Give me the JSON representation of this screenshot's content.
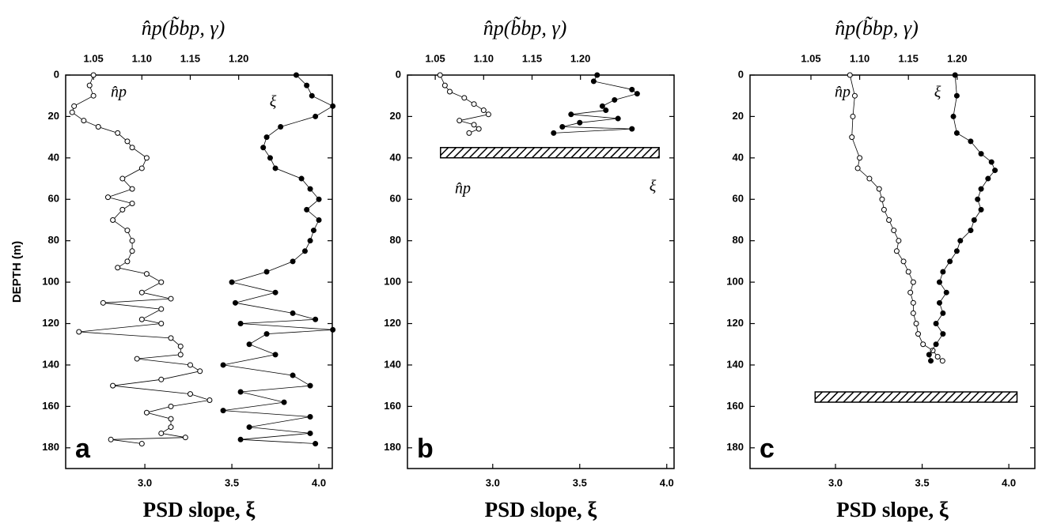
{
  "chart_data": [
    {
      "type": "scatter",
      "title": "n̂p(b̃bp, γ)",
      "xlabel": "PSD slope, ξ",
      "ylabel": "DEPTH (m)",
      "panel_label": "a",
      "xlim": [
        2.545,
        4.077
      ],
      "xticks": [
        {
          "value": 3.0,
          "label": "3.0"
        },
        {
          "value": 3.5,
          "label": "3.5"
        },
        {
          "value": 4.0,
          "label": "4.0"
        }
      ],
      "x2lim": [
        1.0213,
        1.2967
      ],
      "x2ticks": [
        1.05,
        {
          "value": 1.1,
          "label": "1.10"
        },
        1.15,
        {
          "value": 1.2,
          "label": "1.20"
        }
      ],
      "ylim": [
        0,
        190
      ],
      "yticks": [
        0,
        20,
        40,
        60,
        80,
        100,
        120,
        140,
        160,
        180
      ],
      "series": [
        {
          "name": "n̂p",
          "axis": "x2",
          "marker": "open",
          "x": [
            1.05,
            1.046,
            1.05,
            1.03,
            1.028,
            1.04,
            1.055,
            1.075,
            1.085,
            1.09,
            1.105,
            1.1,
            1.08,
            1.09,
            1.065,
            1.09,
            1.08,
            1.07,
            1.085,
            1.09,
            1.09,
            1.085,
            1.075,
            1.105,
            1.12,
            1.1,
            1.13,
            1.06,
            1.12,
            1.1,
            1.12,
            1.035,
            1.13,
            1.14,
            1.14,
            1.095,
            1.15,
            1.16,
            1.12,
            1.07,
            1.15,
            1.17,
            1.13,
            1.105,
            1.13,
            1.13,
            1.12,
            1.145,
            1.068,
            1.1
          ],
          "y": [
            0,
            5,
            10,
            15,
            18,
            22,
            25,
            28,
            32,
            35,
            40,
            45,
            50,
            55,
            59,
            62,
            65,
            70,
            75,
            80,
            85,
            90,
            93,
            96,
            100,
            105,
            108,
            110,
            113,
            118,
            120,
            124,
            127,
            131,
            135,
            137,
            140,
            143,
            147,
            150,
            154,
            157,
            160,
            163,
            166,
            170,
            173,
            175,
            176,
            178
          ]
        },
        {
          "name": "ξ",
          "axis": "x",
          "marker": "filled",
          "x": [
            3.87,
            3.93,
            3.96,
            4.08,
            3.98,
            3.78,
            3.7,
            3.68,
            3.72,
            3.75,
            3.9,
            3.95,
            4.0,
            3.93,
            4.0,
            3.97,
            3.95,
            3.92,
            3.85,
            3.7,
            3.5,
            3.75,
            3.52,
            3.85,
            3.98,
            3.55,
            4.08,
            3.7,
            3.6,
            3.75,
            3.45,
            3.85,
            3.95,
            3.55,
            3.8,
            3.45,
            3.95,
            3.6,
            3.95,
            3.55,
            3.98
          ],
          "y": [
            0,
            5,
            10,
            15,
            20,
            25,
            30,
            35,
            40,
            45,
            50,
            55,
            60,
            65,
            70,
            75,
            80,
            85,
            90,
            95,
            100,
            105,
            110,
            115,
            118,
            120,
            123,
            125,
            130,
            135,
            140,
            145,
            150,
            153,
            158,
            162,
            165,
            170,
            173,
            176,
            178
          ]
        }
      ]
    },
    {
      "type": "scatter",
      "title": "n̂p(b̃bp, γ)",
      "xlabel": "PSD slope, ξ",
      "panel_label": "b",
      "xlim": [
        2.51,
        4.042
      ],
      "xticks": [
        {
          "value": 3.0,
          "label": "3.0"
        },
        {
          "value": 3.5,
          "label": "3.5"
        },
        {
          "value": 4.0,
          "label": "4.0"
        }
      ],
      "x2lim": [
        1.0213,
        1.2967
      ],
      "x2ticks": [
        1.05,
        {
          "value": 1.1,
          "label": "1.10"
        },
        1.15,
        {
          "value": 1.2,
          "label": "1.20"
        }
      ],
      "ylim": [
        0,
        190
      ],
      "yticks": [
        0,
        20,
        40,
        60,
        80,
        100,
        120,
        140,
        160,
        180
      ],
      "bottom_depth": 35,
      "series": [
        {
          "name": "n̂p",
          "axis": "x2",
          "marker": "open",
          "x": [
            1.055,
            1.06,
            1.065,
            1.08,
            1.09,
            1.1,
            1.105,
            1.075,
            1.09,
            1.095,
            1.085
          ],
          "y": [
            0,
            5,
            8,
            11,
            14,
            17,
            19,
            22,
            24,
            26,
            28
          ]
        },
        {
          "name": "ξ",
          "axis": "x",
          "marker": "filled",
          "x": [
            3.6,
            3.58,
            3.8,
            3.83,
            3.7,
            3.63,
            3.65,
            3.45,
            3.72,
            3.5,
            3.4,
            3.8,
            3.35
          ],
          "y": [
            0,
            3,
            7,
            9,
            12,
            15,
            17,
            19,
            21,
            23,
            25,
            26,
            28
          ]
        }
      ]
    },
    {
      "type": "scatter",
      "title": "n̂p(b̃bp, γ)",
      "xlabel": "PSD slope, ξ",
      "panel_label": "c",
      "xlim": [
        2.507,
        4.15
      ],
      "xticks": [
        {
          "value": 3.0,
          "label": "3.0"
        },
        {
          "value": 3.5,
          "label": "3.5"
        },
        {
          "value": 4.0,
          "label": "4.0"
        }
      ],
      "x2lim": [
        0.9875,
        1.2797
      ],
      "x2ticks": [
        1.05,
        {
          "value": 1.1,
          "label": "1.10"
        },
        1.15,
        {
          "value": 1.2,
          "label": "1.20"
        }
      ],
      "ylim": [
        0,
        190
      ],
      "yticks": [
        0,
        20,
        40,
        60,
        80,
        100,
        120,
        140,
        160,
        180
      ],
      "bottom_depth": 153,
      "series": [
        {
          "name": "n̂p",
          "axis": "x2",
          "marker": "open",
          "x": [
            1.09,
            1.095,
            1.093,
            1.092,
            1.1,
            1.098,
            1.11,
            1.12,
            1.123,
            1.125,
            1.13,
            1.135,
            1.14,
            1.138,
            1.145,
            1.15,
            1.155,
            1.152,
            1.155,
            1.155,
            1.158,
            1.16,
            1.165,
            1.175,
            1.18,
            1.185
          ],
          "y": [
            0,
            10,
            20,
            30,
            40,
            45,
            50,
            55,
            60,
            65,
            70,
            75,
            80,
            85,
            90,
            95,
            100,
            105,
            110,
            115,
            120,
            125,
            130,
            133,
            136,
            138
          ]
        },
        {
          "name": "ξ",
          "axis": "x",
          "marker": "filled",
          "x": [
            3.69,
            3.7,
            3.68,
            3.7,
            3.78,
            3.84,
            3.9,
            3.92,
            3.88,
            3.84,
            3.82,
            3.84,
            3.8,
            3.78,
            3.72,
            3.7,
            3.66,
            3.62,
            3.6,
            3.64,
            3.6,
            3.62,
            3.58,
            3.62,
            3.58,
            3.54,
            3.55
          ],
          "y": [
            0,
            10,
            20,
            28,
            32,
            38,
            42,
            46,
            50,
            55,
            60,
            65,
            70,
            75,
            80,
            85,
            90,
            95,
            100,
            105,
            110,
            115,
            120,
            125,
            130,
            135,
            138
          ]
        }
      ]
    }
  ]
}
